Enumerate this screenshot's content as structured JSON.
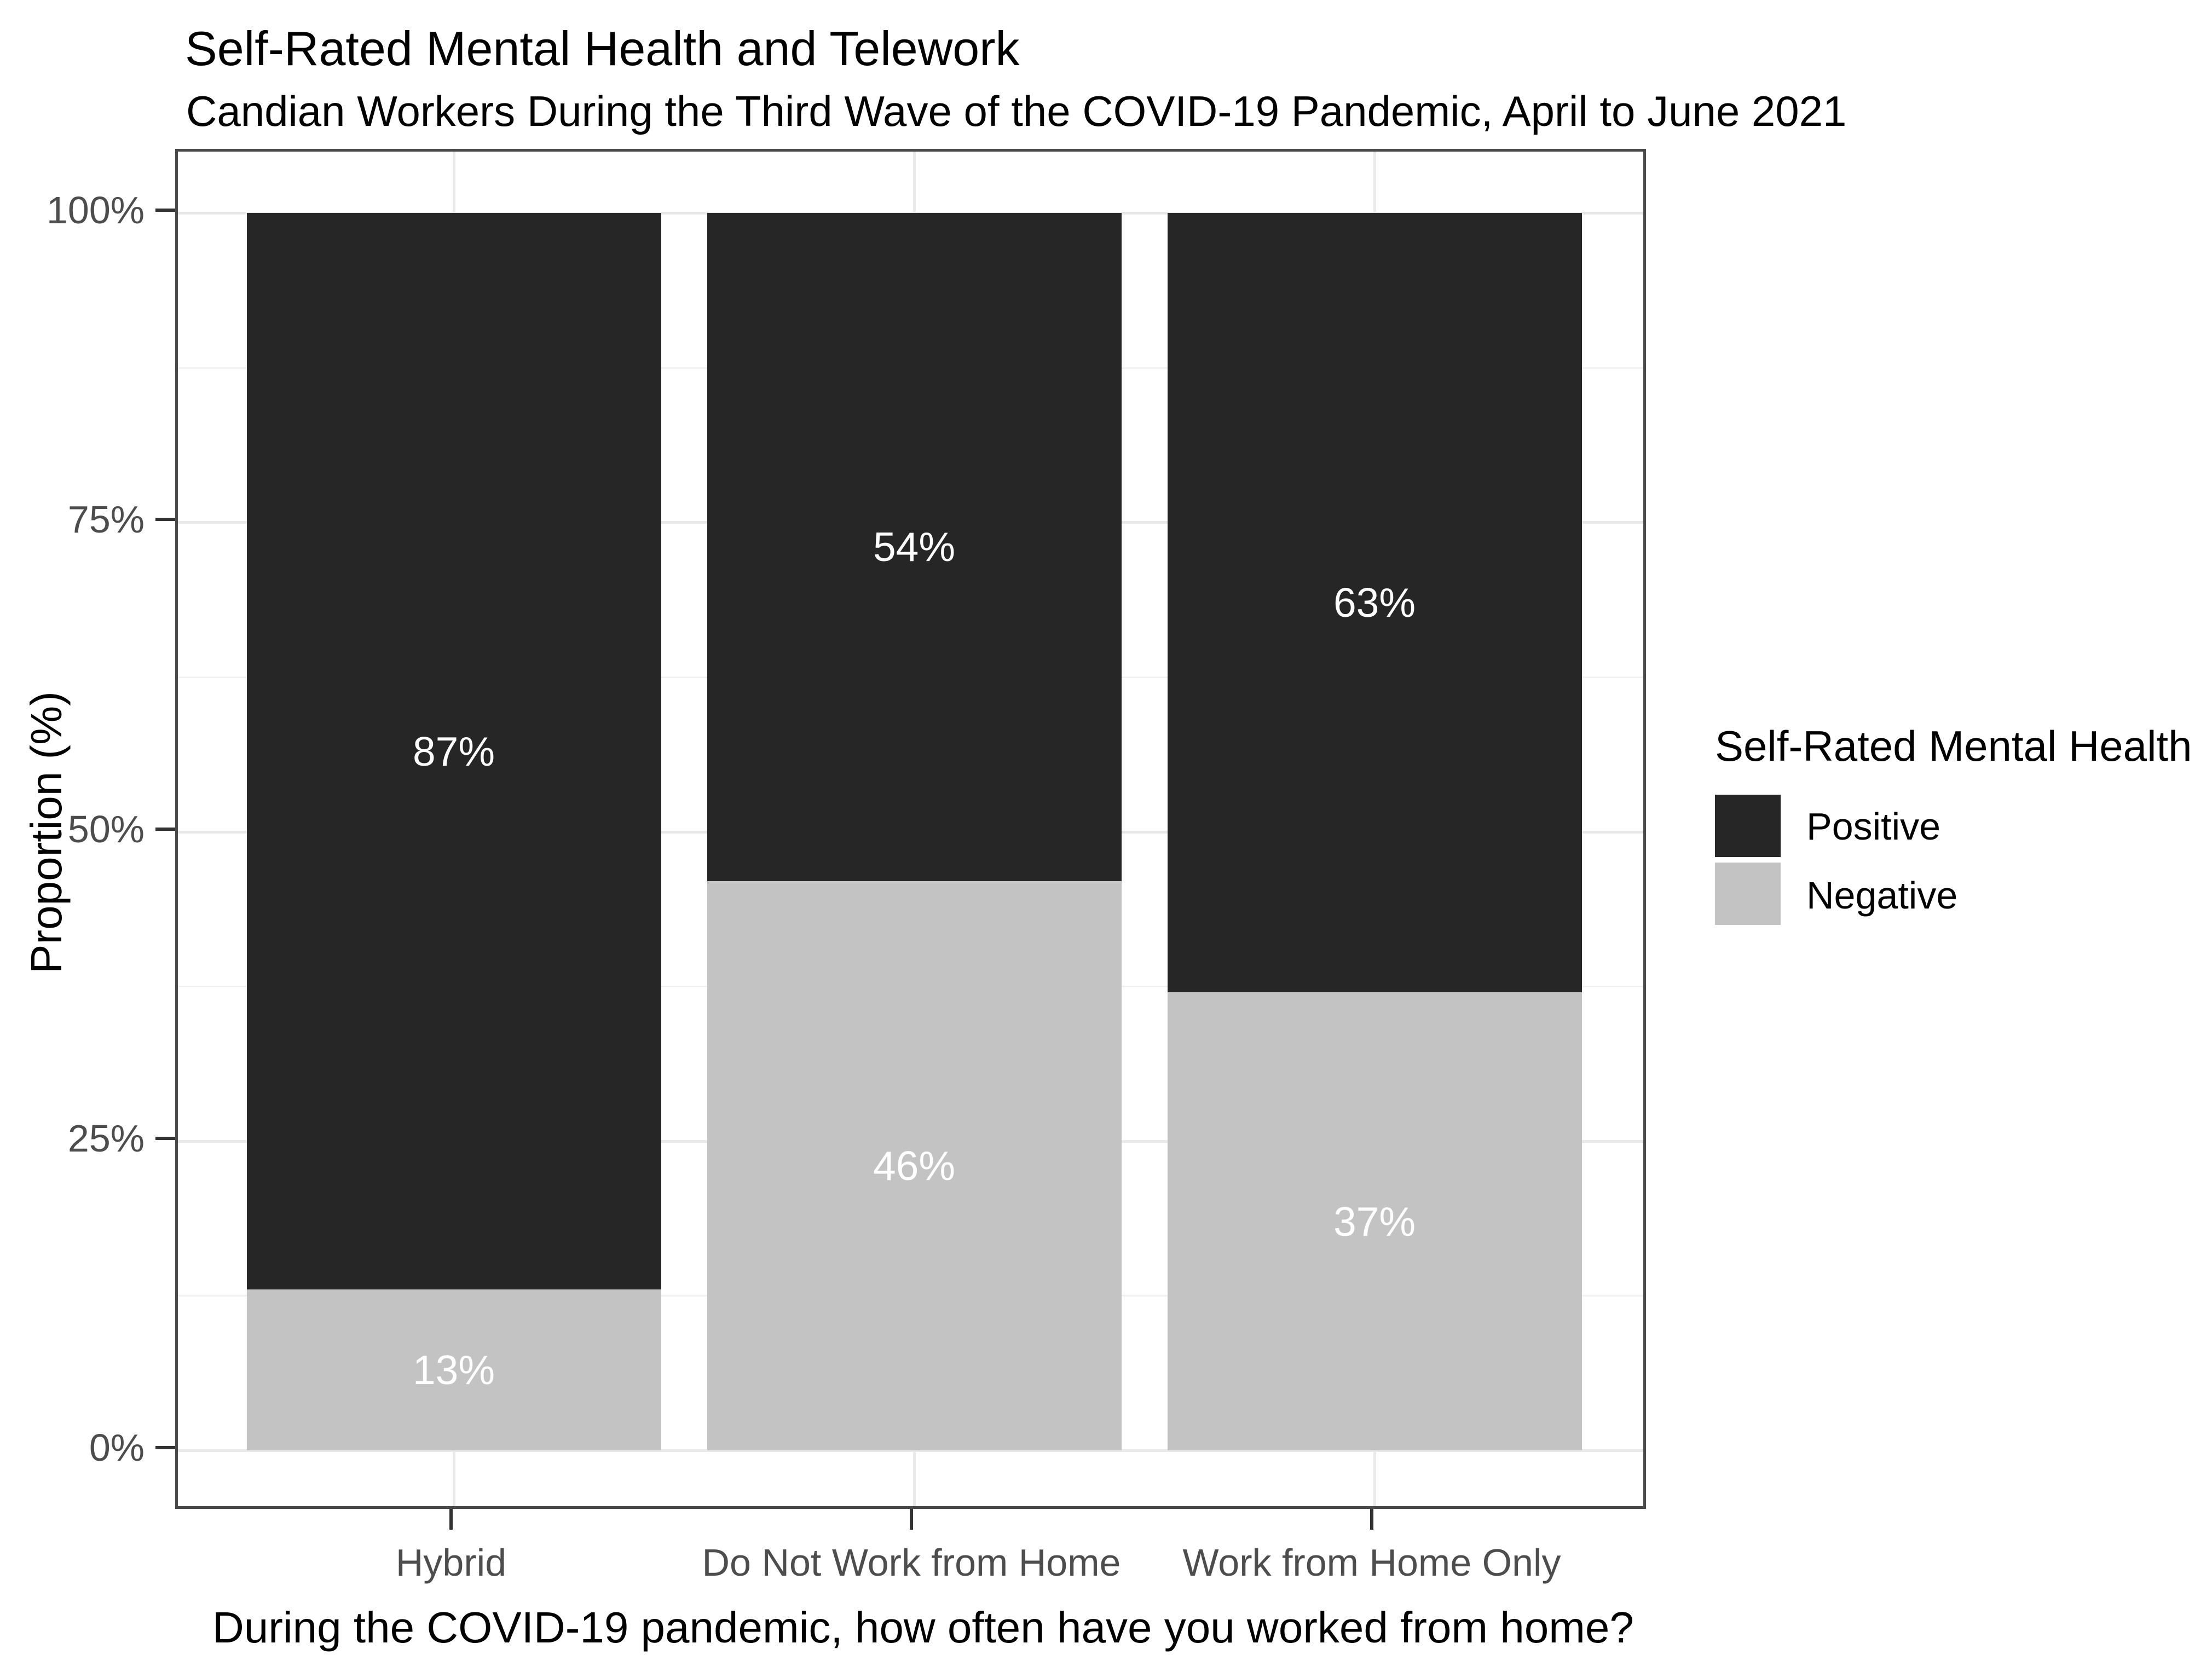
{
  "chart_data": {
    "type": "bar",
    "stacked": true,
    "percent_stacked": true,
    "title": "Self-Rated Mental Health and Telework",
    "subtitle": "Candian Workers During the Third Wave of the COVID-19 Pandemic, April to June 2021",
    "categories": [
      "Hybrid",
      "Do Not Work from Home",
      "Work from Home Only"
    ],
    "series": [
      {
        "name": "Positive",
        "color": "#262626",
        "values": [
          87,
          54,
          63
        ]
      },
      {
        "name": "Negative",
        "color": "#c3c3c3",
        "values": [
          13,
          46,
          37
        ]
      }
    ],
    "bar_value_labels": [
      [
        "87%",
        "54%",
        "63%"
      ],
      [
        "13%",
        "46%",
        "37%"
      ]
    ],
    "ylabel": "Proportion (%)",
    "caption": "During the COVID-19 pandemic, how often have you worked from home?",
    "ylim": [
      0,
      100
    ],
    "ytick_labels": [
      "0%",
      "25%",
      "50%",
      "75%",
      "100%"
    ],
    "ytick_values": [
      0,
      25,
      50,
      75,
      100
    ],
    "yminor_values": [
      12.5,
      37.5,
      62.5,
      87.5
    ],
    "grid": true,
    "legend": {
      "title": "Self-Rated Mental Health",
      "entries": [
        "Positive",
        "Negative"
      ],
      "position": "right"
    },
    "colors": {
      "positive": "#262626",
      "negative": "#c3c3c3",
      "grid_major": "#e9e9e9",
      "grid_minor": "#f2f2f2",
      "panel_border": "#4a4a4a",
      "axis_text": "#4d4d4d",
      "bar_label_text": "#ffffff"
    }
  }
}
